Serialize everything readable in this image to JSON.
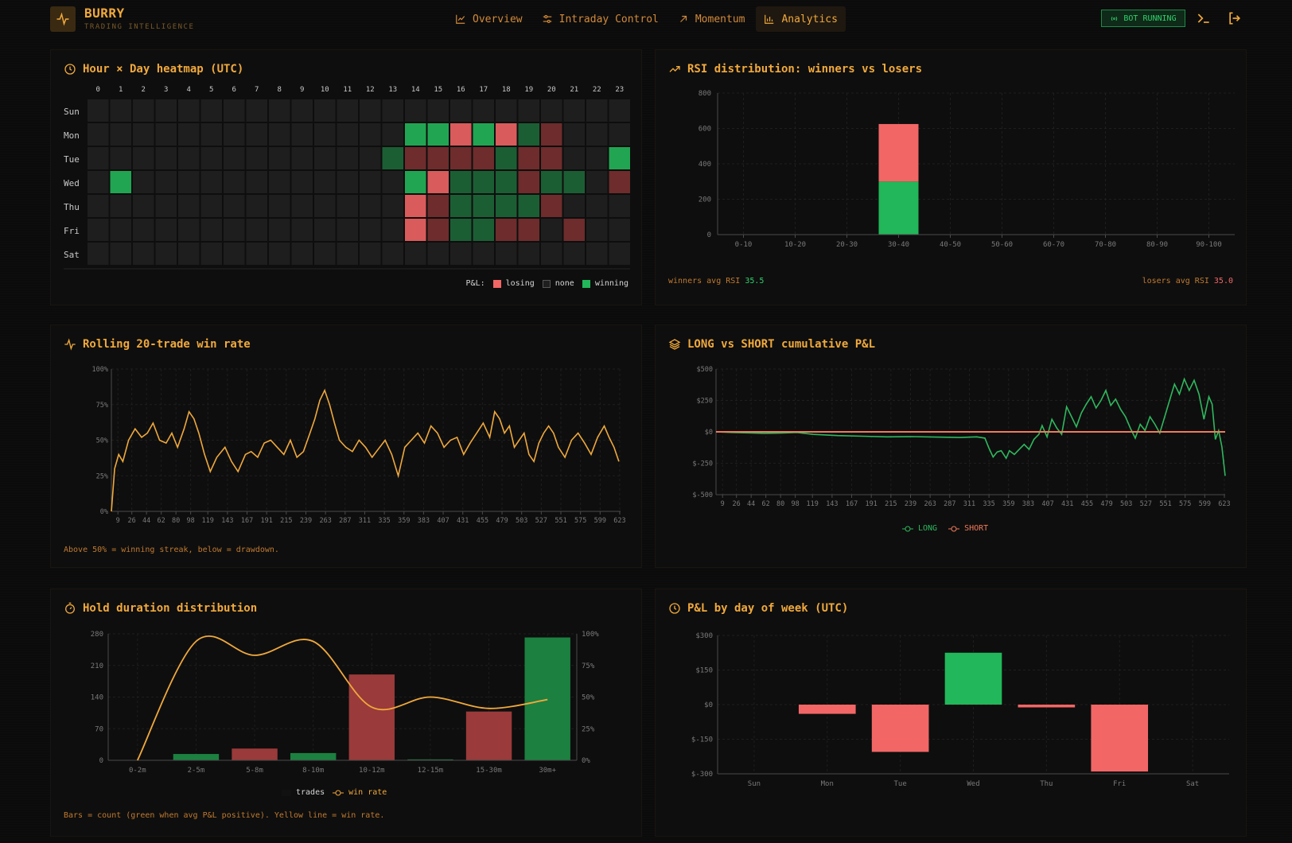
{
  "app": {
    "name": "BURRY",
    "tagline": "TRADING INTELLIGENCE"
  },
  "nav": [
    {
      "label": "Overview",
      "icon": "line-chart-icon"
    },
    {
      "label": "Intraday Control",
      "icon": "sliders-icon"
    },
    {
      "label": "Momentum",
      "icon": "arrow-up-right-icon"
    },
    {
      "label": "Analytics",
      "icon": "bar-chart-icon",
      "active": true
    }
  ],
  "status": {
    "bot_label": "BOT RUNNING",
    "color": "#2fd06a"
  },
  "colors": {
    "accent": "#f0a93c",
    "winning": "#22b75a",
    "losing": "#f26666",
    "none": "#1f1f1f"
  },
  "heatmap": {
    "title": "Hour × Day heatmap (UTC)",
    "hours": [
      "0",
      "1",
      "2",
      "3",
      "4",
      "5",
      "6",
      "7",
      "8",
      "9",
      "10",
      "11",
      "12",
      "13",
      "14",
      "15",
      "16",
      "17",
      "18",
      "19",
      "20",
      "21",
      "22",
      "23"
    ],
    "days": [
      "Sun",
      "Mon",
      "Tue",
      "Wed",
      "Thu",
      "Fri",
      "Sat"
    ],
    "cells": [
      "nnnnnnnnnnnnnnnnnnnnnnnn",
      "nnnnnnnnnnnnnnWWLWLwlnnn",
      "nnnnnnnnnnnnnwllllwllnnW",
      "nWnnnnnnnnnnnnWLwwwlwwnl",
      "nnnnnnnnnnnnnnLlwwwwlnnn",
      "nnnnnnnnnnnnnnLlwwllnlnn",
      "nnnnnnnnnnnnnnnnnnnnnnnn"
    ],
    "legend_prefix": "P&L:",
    "legend": [
      "losing",
      "none",
      "winning"
    ]
  },
  "rsi": {
    "title": "RSI distribution: winners vs losers",
    "winners_label": "winners avg RSI",
    "winners_value": "35.5",
    "losers_label": "losers avg RSI",
    "losers_value": "35.0"
  },
  "winrate": {
    "title": "Rolling 20-trade win rate",
    "note": "Above 50% = winning streak, below = drawdown."
  },
  "longshort": {
    "title": "LONG vs SHORT cumulative P&L",
    "legend_long": "LONG",
    "legend_short": "SHORT"
  },
  "hold": {
    "title": "Hold duration distribution",
    "legend_trades": "trades",
    "legend_winrate": "win rate",
    "note": "Bars = count (green when avg P&L positive). Yellow line = win rate."
  },
  "dow": {
    "title": "P&L by day of week (UTC)"
  },
  "chart_data": [
    {
      "type": "bar",
      "id": "rsi",
      "categories": [
        "0-10",
        "10-20",
        "20-30",
        "30-40",
        "40-50",
        "50-60",
        "60-70",
        "70-80",
        "80-90",
        "90-100"
      ],
      "series": [
        {
          "name": "winners",
          "values": [
            0,
            0,
            0,
            300,
            0,
            0,
            0,
            0,
            0,
            0
          ],
          "color": "#22b75a"
        },
        {
          "name": "losers",
          "values": [
            0,
            0,
            0,
            325,
            0,
            0,
            0,
            0,
            0,
            0
          ],
          "color": "#f26666"
        }
      ],
      "stacked": true,
      "yticks": [
        "0",
        "200",
        "400",
        "600",
        "800"
      ],
      "ylim": [
        0,
        800
      ]
    },
    {
      "type": "line",
      "id": "winrate",
      "xticks": [
        "9",
        "26",
        "44",
        "62",
        "80",
        "98",
        "119",
        "143",
        "167",
        "191",
        "215",
        "239",
        "263",
        "287",
        "311",
        "335",
        "359",
        "383",
        "407",
        "431",
        "455",
        "479",
        "503",
        "527",
        "551",
        "575",
        "599",
        "623"
      ],
      "yticks": [
        "0%",
        "25%",
        "50%",
        "75%",
        "100%"
      ],
      "ylim": [
        0,
        100
      ],
      "xlim": [
        1,
        624
      ],
      "series": [
        {
          "name": "win rate",
          "color": "#f0a93c",
          "points": [
            [
              1,
              0
            ],
            [
              5,
              30
            ],
            [
              10,
              40
            ],
            [
              15,
              35
            ],
            [
              22,
              50
            ],
            [
              30,
              58
            ],
            [
              38,
              52
            ],
            [
              45,
              55
            ],
            [
              52,
              62
            ],
            [
              60,
              50
            ],
            [
              68,
              48
            ],
            [
              75,
              55
            ],
            [
              82,
              45
            ],
            [
              90,
              58
            ],
            [
              96,
              70
            ],
            [
              102,
              65
            ],
            [
              108,
              55
            ],
            [
              115,
              40
            ],
            [
              122,
              28
            ],
            [
              130,
              38
            ],
            [
              140,
              45
            ],
            [
              148,
              35
            ],
            [
              156,
              28
            ],
            [
              165,
              40
            ],
            [
              172,
              42
            ],
            [
              180,
              38
            ],
            [
              188,
              48
            ],
            [
              196,
              50
            ],
            [
              204,
              45
            ],
            [
              212,
              40
            ],
            [
              220,
              50
            ],
            [
              228,
              38
            ],
            [
              236,
              42
            ],
            [
              244,
              55
            ],
            [
              250,
              65
            ],
            [
              256,
              78
            ],
            [
              262,
              85
            ],
            [
              268,
              75
            ],
            [
              274,
              62
            ],
            [
              280,
              50
            ],
            [
              288,
              45
            ],
            [
              296,
              42
            ],
            [
              304,
              50
            ],
            [
              312,
              45
            ],
            [
              320,
              38
            ],
            [
              328,
              44
            ],
            [
              336,
              50
            ],
            [
              344,
              40
            ],
            [
              352,
              25
            ],
            [
              360,
              45
            ],
            [
              368,
              50
            ],
            [
              376,
              55
            ],
            [
              384,
              48
            ],
            [
              392,
              60
            ],
            [
              400,
              55
            ],
            [
              408,
              45
            ],
            [
              416,
              50
            ],
            [
              424,
              52
            ],
            [
              432,
              40
            ],
            [
              440,
              48
            ],
            [
              448,
              55
            ],
            [
              456,
              62
            ],
            [
              464,
              52
            ],
            [
              470,
              70
            ],
            [
              476,
              65
            ],
            [
              482,
              55
            ],
            [
              488,
              60
            ],
            [
              494,
              45
            ],
            [
              500,
              50
            ],
            [
              506,
              55
            ],
            [
              512,
              40
            ],
            [
              518,
              35
            ],
            [
              524,
              48
            ],
            [
              530,
              55
            ],
            [
              536,
              60
            ],
            [
              542,
              55
            ],
            [
              548,
              45
            ],
            [
              556,
              38
            ],
            [
              564,
              50
            ],
            [
              572,
              55
            ],
            [
              580,
              48
            ],
            [
              588,
              40
            ],
            [
              596,
              52
            ],
            [
              604,
              60
            ],
            [
              610,
              52
            ],
            [
              616,
              45
            ],
            [
              622,
              35
            ]
          ]
        }
      ]
    },
    {
      "type": "line",
      "id": "longshort",
      "xticks": [
        "9",
        "26",
        "44",
        "62",
        "80",
        "98",
        "119",
        "143",
        "167",
        "191",
        "215",
        "239",
        "263",
        "287",
        "311",
        "335",
        "359",
        "383",
        "407",
        "431",
        "455",
        "479",
        "503",
        "527",
        "551",
        "575",
        "599",
        "623"
      ],
      "yticks": [
        "$-500",
        "$-250",
        "$0",
        "$250",
        "$500"
      ],
      "ylim": [
        -500,
        500
      ],
      "xlim": [
        1,
        624
      ],
      "series": [
        {
          "name": "LONG",
          "color": "#2fb85e",
          "points": [
            [
              1,
              0
            ],
            [
              20,
              -5
            ],
            [
              40,
              -8
            ],
            [
              60,
              -12
            ],
            [
              80,
              -10
            ],
            [
              100,
              -5
            ],
            [
              120,
              -20
            ],
            [
              150,
              -30
            ],
            [
              180,
              -35
            ],
            [
              210,
              -40
            ],
            [
              240,
              -38
            ],
            [
              270,
              -42
            ],
            [
              300,
              -45
            ],
            [
              320,
              -40
            ],
            [
              330,
              -50
            ],
            [
              335,
              -130
            ],
            [
              340,
              -200
            ],
            [
              345,
              -160
            ],
            [
              350,
              -150
            ],
            [
              356,
              -210
            ],
            [
              360,
              -150
            ],
            [
              366,
              -180
            ],
            [
              372,
              -140
            ],
            [
              378,
              -100
            ],
            [
              384,
              -140
            ],
            [
              390,
              -60
            ],
            [
              396,
              -20
            ],
            [
              400,
              50
            ],
            [
              406,
              -40
            ],
            [
              412,
              100
            ],
            [
              418,
              30
            ],
            [
              424,
              -20
            ],
            [
              430,
              200
            ],
            [
              436,
              120
            ],
            [
              442,
              40
            ],
            [
              448,
              150
            ],
            [
              454,
              220
            ],
            [
              460,
              280
            ],
            [
              466,
              190
            ],
            [
              472,
              250
            ],
            [
              478,
              330
            ],
            [
              484,
              210
            ],
            [
              490,
              260
            ],
            [
              496,
              180
            ],
            [
              502,
              120
            ],
            [
              508,
              30
            ],
            [
              514,
              -50
            ],
            [
              520,
              60
            ],
            [
              526,
              10
            ],
            [
              532,
              120
            ],
            [
              538,
              60
            ],
            [
              544,
              -10
            ],
            [
              550,
              120
            ],
            [
              556,
              250
            ],
            [
              562,
              380
            ],
            [
              568,
              300
            ],
            [
              574,
              420
            ],
            [
              580,
              330
            ],
            [
              586,
              410
            ],
            [
              592,
              300
            ],
            [
              598,
              100
            ],
            [
              604,
              280
            ],
            [
              608,
              220
            ],
            [
              612,
              -60
            ],
            [
              616,
              10
            ],
            [
              620,
              -120
            ],
            [
              624,
              -350
            ]
          ]
        },
        {
          "name": "SHORT",
          "color": "#f07a5a",
          "points": [
            [
              1,
              0
            ],
            [
              624,
              0
            ]
          ]
        }
      ]
    },
    {
      "type": "bar",
      "id": "hold",
      "categories": [
        "0-2m",
        "2-5m",
        "5-8m",
        "8-10m",
        "10-12m",
        "12-15m",
        "15-30m",
        "30m+"
      ],
      "values": [
        0,
        14,
        26,
        16,
        190,
        2,
        108,
        272
      ],
      "bar_colors": [
        "#1c8040",
        "#1c8040",
        "#9a3a3a",
        "#1c8040",
        "#9a3a3a",
        "#1c8040",
        "#9a3a3a",
        "#1c8040"
      ],
      "yticks": [
        "0",
        "70",
        "140",
        "210",
        "280"
      ],
      "ylim": [
        0,
        280
      ],
      "y2ticks": [
        "0%",
        "25%",
        "50%",
        "75%",
        "100%"
      ],
      "y2lim": [
        0,
        100
      ],
      "line": {
        "name": "win rate",
        "color": "#f0a93c",
        "values": [
          0,
          94,
          83,
          94,
          42,
          50,
          41,
          48
        ]
      }
    },
    {
      "type": "bar",
      "id": "dow",
      "categories": [
        "Sun",
        "Mon",
        "Tue",
        "Wed",
        "Thu",
        "Fri",
        "Sat"
      ],
      "values": [
        0,
        -40,
        -205,
        225,
        -12,
        -290,
        0
      ],
      "yticks": [
        "$-300",
        "$-150",
        "$0",
        "$150",
        "$300"
      ],
      "ylim": [
        -300,
        300
      ]
    }
  ]
}
